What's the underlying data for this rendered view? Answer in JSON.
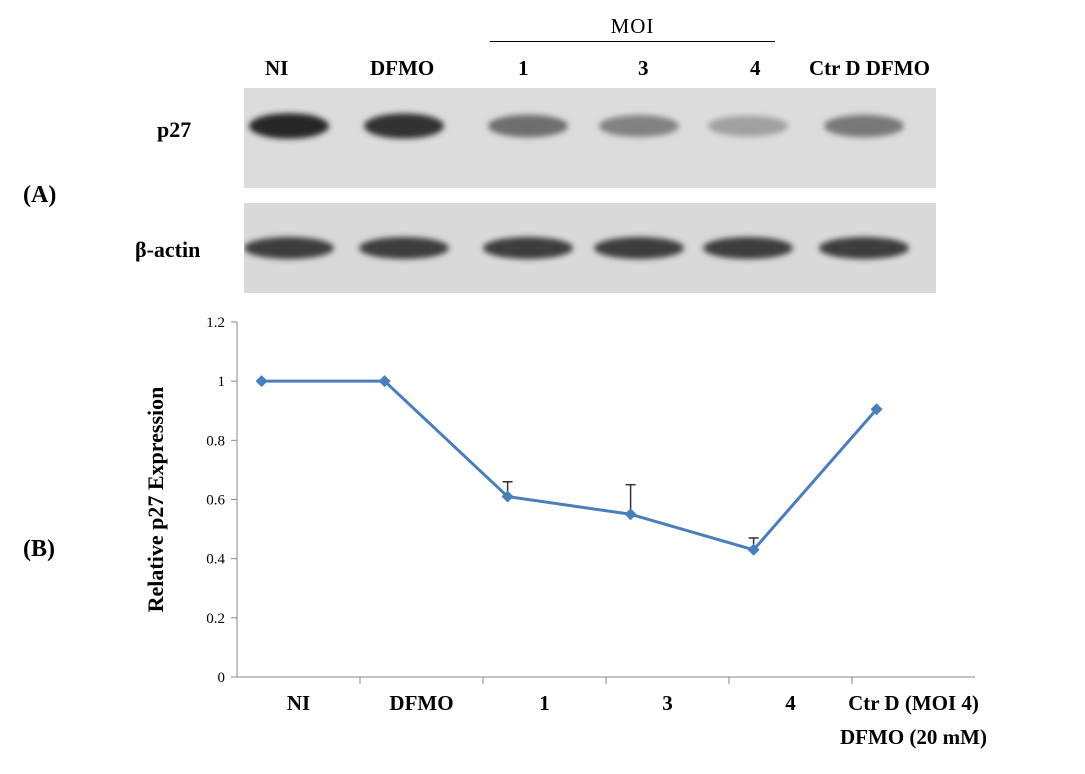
{
  "panel_a": {
    "label": "(A)",
    "moi_header": "MOI",
    "lanes": [
      "NI",
      "DFMO",
      "1",
      "3",
      "4",
      "Ctr D DFMO"
    ],
    "blots": [
      {
        "name": "p27",
        "band_intensity": [
          0.95,
          0.9,
          0.6,
          0.5,
          0.35,
          0.55
        ]
      },
      {
        "name": "β-actin",
        "band_intensity": [
          0.85,
          0.85,
          0.85,
          0.85,
          0.85,
          0.85
        ]
      }
    ]
  },
  "panel_b": {
    "label": "(B)"
  },
  "chart_data": {
    "type": "line",
    "categories": [
      "NI",
      "DFMO",
      "1",
      "3",
      "4",
      "Ctr D (MOI 4)\nDFMO (20 mM)"
    ],
    "category_lines": [
      [
        "NI"
      ],
      [
        "DFMO"
      ],
      [
        "1"
      ],
      [
        "3"
      ],
      [
        "4"
      ],
      [
        "Ctr D (MOI 4)",
        "DFMO (20 mM)"
      ]
    ],
    "x": [
      0.2,
      1.2,
      2.2,
      3.2,
      4.2,
      5.2
    ],
    "values": [
      1.0,
      1.0,
      0.61,
      0.55,
      0.43,
      0.905
    ],
    "error_upper": [
      0,
      0,
      0.05,
      0.1,
      0.04,
      0
    ],
    "ylabel": "Relative p27  Expression",
    "ylim": [
      0,
      1.2
    ],
    "yticks": [
      "0",
      "0.2",
      "0.4",
      "0.6",
      "0.8",
      "1",
      "1.2"
    ],
    "ytick_values": [
      0,
      0.2,
      0.4,
      0.6,
      0.8,
      1.0,
      1.2
    ],
    "line_color": "#4a7ebb",
    "grid": false,
    "legend": "none"
  }
}
